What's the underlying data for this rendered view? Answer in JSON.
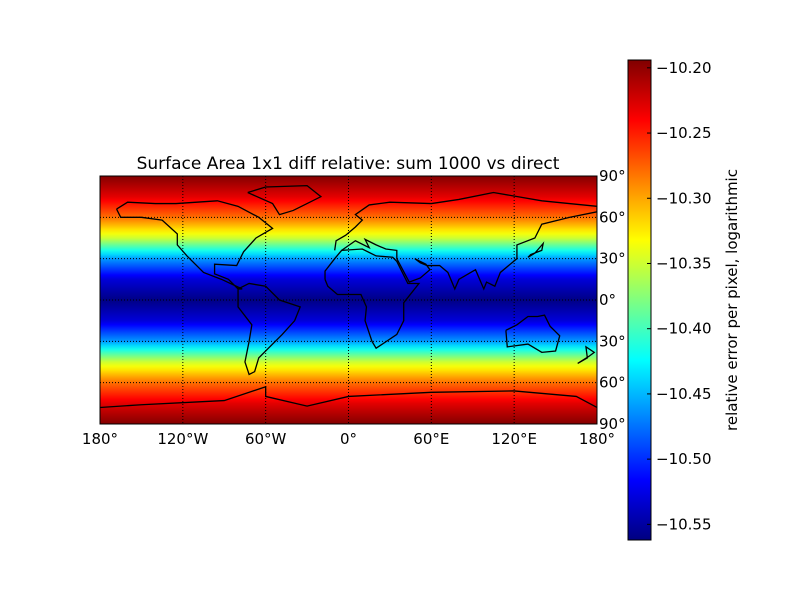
{
  "chart_data": {
    "type": "heatmap",
    "title": "Surface Area 1x1 diff relative: sum 1000 vs direct",
    "projection": "cylindrical (lon/lat) world map with coastlines",
    "colormap": "jet",
    "grid": true,
    "x_ticks": [
      "180°",
      "120°W",
      "60°W",
      "0°",
      "60°E",
      "120°E",
      "180°"
    ],
    "x_tick_values": [
      -180,
      -120,
      -60,
      0,
      60,
      120,
      180
    ],
    "y_ticks": [
      "90°",
      "60°",
      "30°",
      "0°",
      "30°",
      "60°",
      "90°"
    ],
    "y_tick_values": [
      90,
      60,
      30,
      0,
      -30,
      -60,
      -90
    ],
    "xlim": [
      -180,
      180
    ],
    "ylim": [
      -90,
      90
    ],
    "field_by_latitude": {
      "lat": [
        0,
        15,
        30,
        45,
        60,
        75,
        90
      ],
      "value": [
        -10.56,
        -10.53,
        -10.46,
        -10.35,
        -10.28,
        -10.23,
        -10.195
      ]
    },
    "colorbar": {
      "label": "relative error per pixel, logarithmic",
      "ticks": [
        "−10.20",
        "−10.25",
        "−10.30",
        "−10.35",
        "−10.40",
        "−10.45",
        "−10.50",
        "−10.55"
      ],
      "tick_values": [
        -10.2,
        -10.25,
        -10.3,
        -10.35,
        -10.4,
        -10.45,
        -10.5,
        -10.55
      ],
      "range": [
        -10.562,
        -10.194
      ],
      "placement": "right"
    }
  }
}
